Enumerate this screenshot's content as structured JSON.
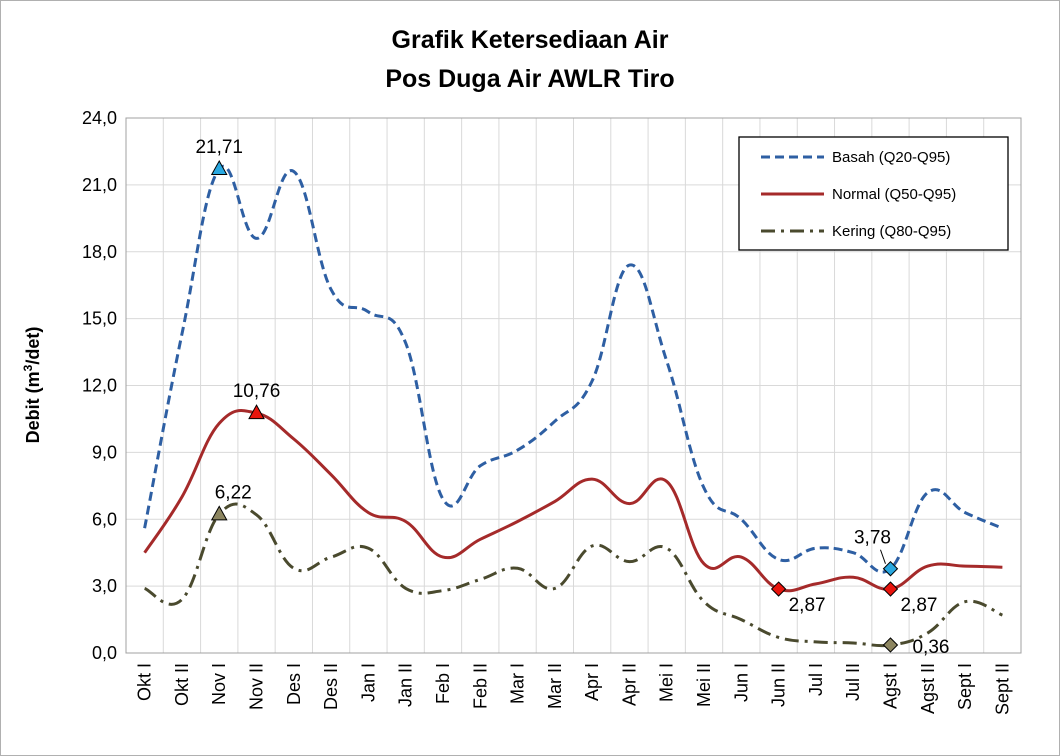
{
  "chart_data": {
    "type": "line",
    "title_line1": "Grafik Ketersediaan Air",
    "title_line2": "Pos Duga Air AWLR Tiro",
    "ylabel_main": "Debit (m",
    "ylabel_sup": "3",
    "ylabel_tail": "/det)",
    "xlabel": "",
    "ylim": [
      0,
      24
    ],
    "yticks": [
      "0,0",
      "3,0",
      "6,0",
      "9,0",
      "12,0",
      "15,0",
      "18,0",
      "21,0",
      "24,0"
    ],
    "grid": true,
    "legend_position": "top-right",
    "categories": [
      "Okt I",
      "Okt II",
      "Nov I",
      "Nov II",
      "Des I",
      "Des II",
      "Jan I",
      "Jan II",
      "Feb I",
      "Feb II",
      "Mar I",
      "Mar II",
      "Apr I",
      "Apr II",
      "Mei I",
      "Mei II",
      "Jun I",
      "Jun II",
      "Jul I",
      "Jul II",
      "Agst I",
      "Agst II",
      "Sept I",
      "Sept II"
    ],
    "series": [
      {
        "name": "Basah (Q20-Q95)",
        "color": "#2e5fa3",
        "dash": "dashed",
        "values": [
          5.6,
          14.3,
          21.71,
          18.6,
          21.6,
          16.3,
          15.3,
          13.9,
          6.9,
          8.4,
          9.1,
          10.4,
          12.2,
          17.4,
          13.1,
          7.4,
          6.0,
          4.2,
          4.7,
          4.5,
          3.78,
          7.2,
          6.3,
          5.6
        ]
      },
      {
        "name": "Normal (Q50-Q95)",
        "color": "#a52a2a",
        "dash": "solid",
        "values": [
          4.5,
          7.0,
          10.3,
          10.76,
          9.6,
          8.0,
          6.3,
          5.9,
          4.3,
          5.1,
          5.9,
          6.8,
          7.8,
          6.7,
          7.7,
          4.0,
          4.3,
          2.87,
          3.1,
          3.4,
          2.87,
          3.9,
          3.9,
          3.85
        ]
      },
      {
        "name": "Kering (Q80-Q95)",
        "color": "#4a4a2e",
        "dash": "dashdot",
        "values": [
          2.9,
          2.4,
          6.22,
          6.2,
          3.8,
          4.3,
          4.7,
          2.9,
          2.8,
          3.3,
          3.8,
          2.9,
          4.8,
          4.1,
          4.7,
          2.3,
          1.5,
          0.7,
          0.5,
          0.45,
          0.36,
          0.9,
          2.3,
          1.7
        ]
      }
    ],
    "markers": [
      {
        "series": 0,
        "index": 2,
        "shape": "triangle",
        "color": "#29a8e0",
        "label": "21,71"
      },
      {
        "series": 1,
        "index": 3,
        "shape": "triangle",
        "color": "#e8140c",
        "label": "10,76"
      },
      {
        "series": 2,
        "index": 2,
        "shape": "triangle",
        "color": "#8c8560",
        "label": "6,22"
      },
      {
        "series": 0,
        "index": 20,
        "shape": "diamond",
        "color": "#29a8e0",
        "label": "3,78"
      },
      {
        "series": 1,
        "index": 17,
        "shape": "diamond",
        "color": "#e8140c",
        "label": "2,87"
      },
      {
        "series": 1,
        "index": 20,
        "shape": "diamond",
        "color": "#e8140c",
        "label": "2,87"
      },
      {
        "series": 2,
        "index": 20,
        "shape": "diamond",
        "color": "#8c8560",
        "label": "0,36"
      }
    ]
  }
}
